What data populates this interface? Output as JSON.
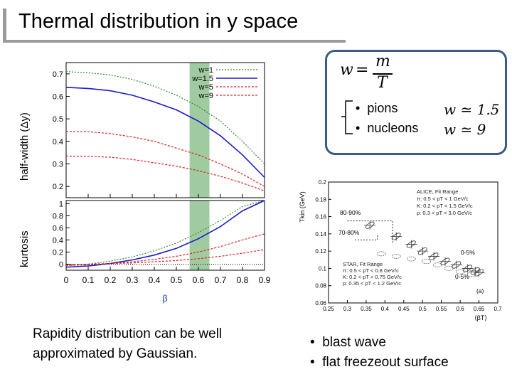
{
  "slide": {
    "title": "Thermal distribution in y space",
    "ylabel_top": "half-width (Δy)",
    "ylabel_bottom": "kurtosis",
    "caption": "Rapidity distribution can be well approximated by Gaussian.",
    "bullets": [
      "blast wave",
      "flat freezeout surface"
    ]
  },
  "formula": {
    "w": "w",
    "eq": "=",
    "m": "m",
    "T": "T",
    "items": [
      {
        "label": "pions",
        "rel": "w ≃ 1.5"
      },
      {
        "label": "nucleons",
        "rel": "w ≃ 9"
      }
    ]
  },
  "chart_data": [
    {
      "type": "line",
      "title": "",
      "xlabel": "β",
      "ylabel": "half-width (Δy)",
      "xlim": [
        0,
        0.9
      ],
      "ylim": [
        0.15,
        0.75
      ],
      "xticks": [
        "0",
        "0.1",
        "0.2",
        "0.3",
        "0.4",
        "0.5",
        "0.6",
        "0.7",
        "0.8",
        "0.9"
      ],
      "yticks": [
        "0.2",
        "0.3",
        "0.4",
        "0.5",
        "0.6",
        "0.7"
      ],
      "highlight_band": [
        0.56,
        0.65
      ],
      "legend": [
        "w=1",
        "w=1.5",
        "w=5",
        "w=9"
      ],
      "series": [
        {
          "name": "w=1",
          "color": "#2e8b2e",
          "x": [
            0,
            0.1,
            0.2,
            0.3,
            0.4,
            0.5,
            0.6,
            0.7,
            0.8,
            0.9
          ],
          "y": [
            0.71,
            0.705,
            0.695,
            0.675,
            0.645,
            0.605,
            0.555,
            0.49,
            0.4,
            0.3
          ]
        },
        {
          "name": "w=1.5",
          "color": "#1a1acc",
          "x": [
            0,
            0.1,
            0.2,
            0.3,
            0.4,
            0.5,
            0.6,
            0.7,
            0.8,
            0.9
          ],
          "y": [
            0.64,
            0.635,
            0.625,
            0.605,
            0.575,
            0.54,
            0.49,
            0.425,
            0.34,
            0.24
          ]
        },
        {
          "name": "w=5",
          "color": "#dd2222",
          "x": [
            0,
            0.1,
            0.2,
            0.3,
            0.4,
            0.5,
            0.6,
            0.7,
            0.8,
            0.9
          ],
          "y": [
            0.445,
            0.443,
            0.435,
            0.42,
            0.4,
            0.37,
            0.34,
            0.3,
            0.255,
            0.2
          ]
        },
        {
          "name": "w=9",
          "color": "#dd2222",
          "x": [
            0,
            0.1,
            0.2,
            0.3,
            0.4,
            0.5,
            0.6,
            0.7,
            0.8,
            0.9
          ],
          "y": [
            0.335,
            0.333,
            0.33,
            0.32,
            0.305,
            0.29,
            0.27,
            0.245,
            0.215,
            0.18
          ]
        }
      ]
    },
    {
      "type": "line",
      "title": "",
      "xlabel": "β",
      "ylabel": "kurtosis",
      "xlim": [
        0,
        0.9
      ],
      "ylim": [
        -0.1,
        1.05
      ],
      "xticks": [
        "0",
        "0.1",
        "0.2",
        "0.3",
        "0.4",
        "0.5",
        "0.6",
        "0.7",
        "0.8",
        "0.9"
      ],
      "yticks": [
        "0",
        "0.2",
        "0.4",
        "0.6",
        "0.8",
        "1"
      ],
      "highlight_band": [
        0.56,
        0.65
      ],
      "series": [
        {
          "name": "w=1",
          "color": "#2e8b2e",
          "x": [
            0,
            0.1,
            0.2,
            0.3,
            0.4,
            0.5,
            0.6,
            0.7,
            0.8,
            0.9
          ],
          "y": [
            -0.02,
            0.0,
            0.05,
            0.12,
            0.22,
            0.35,
            0.52,
            0.72,
            0.95,
            1.05
          ]
        },
        {
          "name": "w=1.5",
          "color": "#1a1acc",
          "x": [
            0,
            0.1,
            0.2,
            0.3,
            0.4,
            0.5,
            0.6,
            0.7,
            0.8,
            0.9
          ],
          "y": [
            -0.05,
            -0.03,
            0.01,
            0.07,
            0.15,
            0.26,
            0.42,
            0.62,
            0.88,
            1.05
          ]
        },
        {
          "name": "w=5",
          "color": "#dd2222",
          "x": [
            0,
            0.1,
            0.2,
            0.3,
            0.4,
            0.5,
            0.6,
            0.7,
            0.8,
            0.9
          ],
          "y": [
            -0.02,
            -0.01,
            0.01,
            0.04,
            0.08,
            0.13,
            0.2,
            0.29,
            0.4,
            0.5
          ]
        },
        {
          "name": "w=9",
          "color": "#dd2222",
          "x": [
            0,
            0.1,
            0.2,
            0.3,
            0.4,
            0.5,
            0.6,
            0.7,
            0.8,
            0.9
          ],
          "y": [
            -0.01,
            0.0,
            0.01,
            0.02,
            0.04,
            0.06,
            0.09,
            0.13,
            0.18,
            0.24
          ]
        }
      ]
    },
    {
      "type": "scatter",
      "title": "",
      "xlabel": "⟨βT⟩",
      "ylabel": "Tkin (GeV)",
      "xlim": [
        0.25,
        0.7
      ],
      "ylim": [
        0.06,
        0.2
      ],
      "xticks": [
        "0.25",
        "0.3",
        "0.35",
        "0.4",
        "0.45",
        "0.5",
        "0.55",
        "0.6",
        "0.65",
        "0.7"
      ],
      "yticks": [
        "0.06",
        "0.08",
        "0.1",
        "0.12",
        "0.14",
        "0.16",
        "0.18",
        "0.2"
      ],
      "legend_alice": [
        "ALICE, Fit Range",
        "π: 0.5 < pT < 1 GeV/c",
        "K: 0.2 < pT < 1.5 GeV/c",
        "p: 0.3 < pT < 3.0 GeV/c"
      ],
      "legend_star": [
        "STAR, Fit Range",
        "π: 0.5 < pT < 0.8 GeV/c",
        "K: 0.2 < pT < 0.75 GeV/c",
        "p: 0.35 < pT < 1.2 GeV/c"
      ],
      "annotations": [
        "80-90%",
        "70-80%",
        "0-5%",
        "0-5%",
        "(a)"
      ],
      "points": [
        {
          "x": 0.36,
          "y": 0.15
        },
        {
          "x": 0.43,
          "y": 0.137
        },
        {
          "x": 0.47,
          "y": 0.128
        },
        {
          "x": 0.5,
          "y": 0.12
        },
        {
          "x": 0.53,
          "y": 0.114
        },
        {
          "x": 0.56,
          "y": 0.108
        },
        {
          "x": 0.59,
          "y": 0.104
        },
        {
          "x": 0.62,
          "y": 0.1
        },
        {
          "x": 0.64,
          "y": 0.097
        },
        {
          "x": 0.65,
          "y": 0.095
        }
      ],
      "star_points": [
        {
          "x": 0.39,
          "y": 0.117
        },
        {
          "x": 0.43,
          "y": 0.114
        },
        {
          "x": 0.47,
          "y": 0.111
        },
        {
          "x": 0.51,
          "y": 0.108
        },
        {
          "x": 0.54,
          "y": 0.104
        },
        {
          "x": 0.57,
          "y": 0.1
        },
        {
          "x": 0.6,
          "y": 0.096
        },
        {
          "x": 0.63,
          "y": 0.093
        }
      ]
    }
  ]
}
